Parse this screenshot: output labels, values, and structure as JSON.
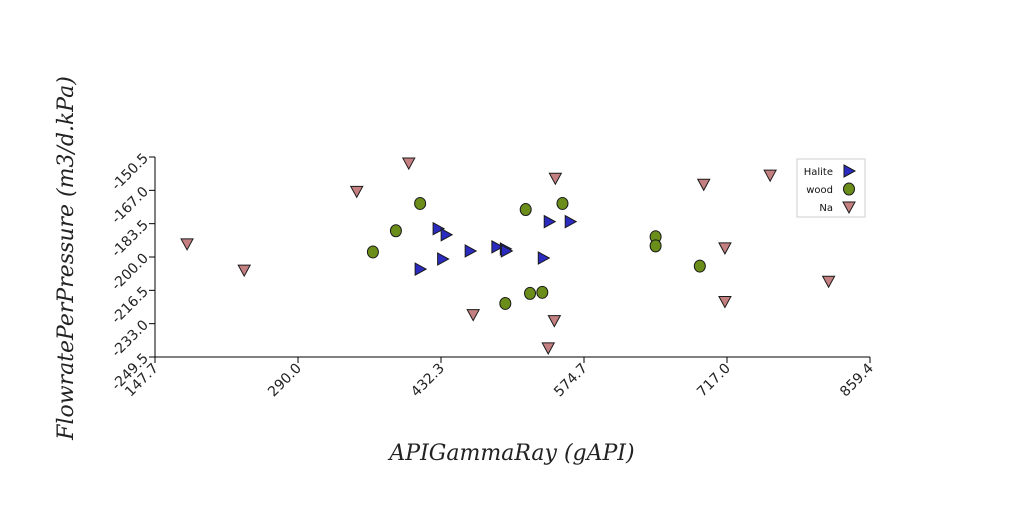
{
  "chart_data": {
    "type": "scatter",
    "title": "",
    "xlabel": "APIGammaRay (gAPI)",
    "ylabel": "FlowratePerPressure (m3/d.kPa)",
    "xlim": [
      147.7,
      859.4
    ],
    "ylim": [
      -249.5,
      -150.5
    ],
    "xticks": [
      "147.7",
      "290.0",
      "432.3",
      "574.7",
      "717.0",
      "859.4"
    ],
    "yticks": [
      "-150.5",
      "-167.0",
      "-183.5",
      "-200.0",
      "-216.5",
      "-233.0",
      "-249.5"
    ],
    "grid": false,
    "legend_position": "top-right",
    "series": [
      {
        "name": "Halite",
        "marker": "triangle-right",
        "color": "#2b2bbf",
        "points": [
          [
            429.5,
            -186
          ],
          [
            437.5,
            -189
          ],
          [
            434.0,
            -201
          ],
          [
            411.6,
            -206
          ],
          [
            461.4,
            -197
          ],
          [
            488.0,
            -195
          ],
          [
            496.4,
            -196
          ],
          [
            497.4,
            -197
          ],
          [
            534.2,
            -200.5
          ],
          [
            540.1,
            -182.5
          ],
          [
            561.0,
            -182.5
          ]
        ]
      },
      {
        "name": "wood",
        "marker": "circle",
        "color": "#6b8e1a",
        "points": [
          [
            364.6,
            -197.5
          ],
          [
            387.5,
            -187
          ],
          [
            411.6,
            -173.5
          ],
          [
            516.7,
            -176.5
          ],
          [
            553.3,
            -173.5
          ],
          [
            496.4,
            -223
          ],
          [
            521.0,
            -218
          ],
          [
            533.2,
            -217.5
          ],
          [
            646.0,
            -190
          ],
          [
            646.0,
            -194.5
          ],
          [
            690.0,
            -204.5
          ]
        ]
      },
      {
        "name": "Na",
        "marker": "triangle-down",
        "color": "#c48080",
        "points": [
          [
            179.6,
            -193.5
          ],
          [
            236.5,
            -206.5
          ],
          [
            348.5,
            -167.5
          ],
          [
            400.3,
            -153.5
          ],
          [
            464.4,
            -228.5
          ],
          [
            539.1,
            -245
          ],
          [
            545.2,
            -231.5
          ],
          [
            546.2,
            -161
          ],
          [
            693.9,
            -164
          ],
          [
            715.0,
            -195.5
          ],
          [
            715.0,
            -222
          ],
          [
            760.0,
            -159.5
          ],
          [
            818.2,
            -212
          ]
        ]
      }
    ]
  }
}
